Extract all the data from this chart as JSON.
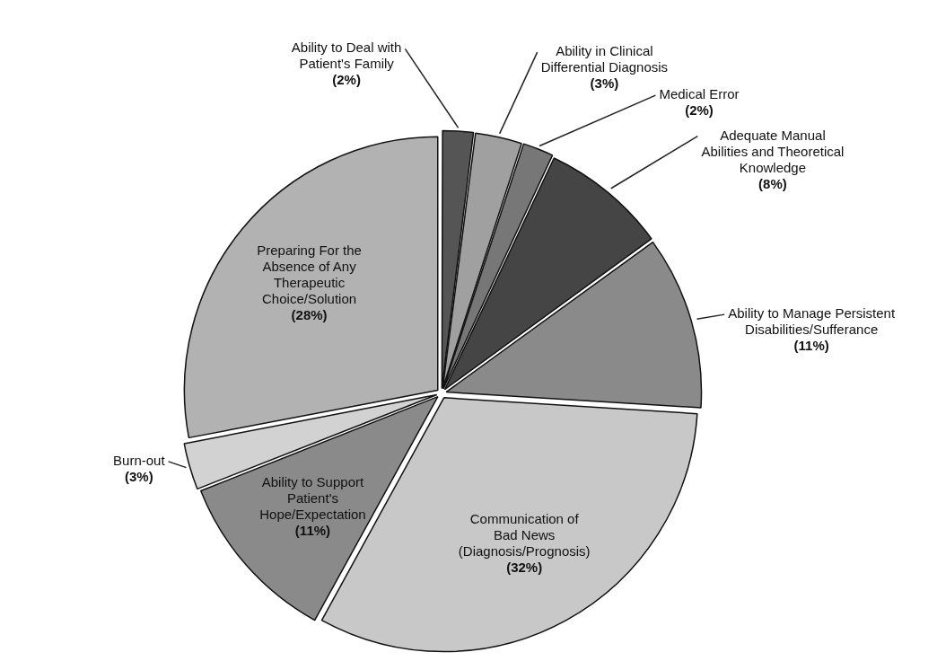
{
  "chart_data": {
    "type": "pie",
    "categories": [
      "Ability to Deal with Patient's Family",
      "Ability in Clinical Differential Diagnosis",
      "Medical Error",
      "Adequate Manual Abilities and Theoretical Knowledge",
      "Ability to Manage Persistent Disabilities/Sufferance",
      "Communication of Bad News (Diagnosis/Prognosis)",
      "Ability to Support Patient's Hope/Expectation",
      "Burn-out",
      "Preparing For the Absence of Any Therapeutic Choice/Solution"
    ],
    "values": [
      2,
      3,
      2,
      8,
      11,
      32,
      11,
      3,
      28
    ],
    "value_labels": [
      "(2%)",
      "(3%)",
      "(2%)",
      "(8%)",
      "(11%)",
      "(32%)",
      "(11%)",
      "(3%)",
      "(28%)"
    ],
    "colors": [
      "#555555",
      "#a0a0a0",
      "#777777",
      "#454545",
      "#8a8a8a",
      "#c8c8c8",
      "#8a8a8a",
      "#d2d2d2",
      "#b2b2b2"
    ],
    "legend": false
  }
}
